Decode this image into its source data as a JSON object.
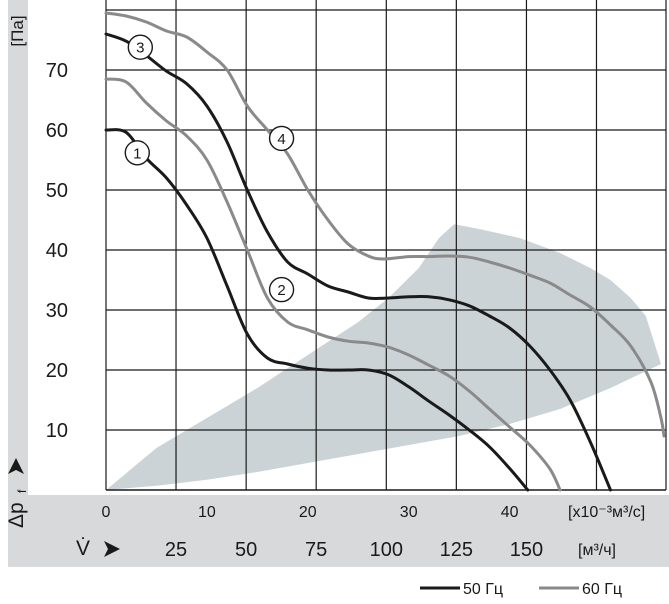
{
  "chart_data": {
    "type": "line",
    "y_axis": {
      "unit_label": "[Па]",
      "symbol_main": "Δp",
      "symbol_sub": "f",
      "ticks": [
        "10",
        "20",
        "30",
        "40",
        "50",
        "60",
        "70"
      ],
      "range": [
        0,
        80
      ]
    },
    "x_axis": {
      "ticks": [
        "0",
        "10",
        "20",
        "30",
        "40"
      ],
      "unit_label": "[x10⁻³м³/с]",
      "range": [
        0,
        55.5
      ]
    },
    "x_axis_secondary": {
      "symbol": "V̇",
      "ticks": [
        {
          "label": "25",
          "m3s": 6.94
        },
        {
          "label": "50",
          "m3s": 13.89
        },
        {
          "label": "75",
          "m3s": 20.83
        },
        {
          "label": "100",
          "m3s": 27.78
        },
        {
          "label": "125",
          "m3s": 34.72
        },
        {
          "label": "150",
          "m3s": 41.67
        }
      ],
      "unit_label": "[м³/ч]"
    },
    "grid": true,
    "legend": {
      "position": "bottom-right",
      "items": [
        {
          "label": "50 Гц",
          "color": "#1a1a1a"
        },
        {
          "label": "60 Гц",
          "color": "#8a8a8a"
        }
      ]
    },
    "series": [
      {
        "marker": "1",
        "frequency": "50 Гц",
        "color": "#1a1a1a",
        "marker_at": [
          3.1,
          56.2
        ],
        "points": [
          [
            0,
            60
          ],
          [
            2,
            59.6
          ],
          [
            4,
            55.3
          ],
          [
            6,
            52
          ],
          [
            8,
            47.5
          ],
          [
            10,
            42
          ],
          [
            12,
            34
          ],
          [
            14,
            26
          ],
          [
            16,
            22
          ],
          [
            18,
            21
          ],
          [
            20,
            20.3
          ],
          [
            22,
            20
          ],
          [
            24,
            20
          ],
          [
            26,
            20
          ],
          [
            28,
            19.2
          ],
          [
            30,
            17.2
          ],
          [
            32,
            14.8
          ],
          [
            34,
            12.5
          ],
          [
            36,
            10
          ],
          [
            38,
            7.2
          ],
          [
            40,
            3.6
          ],
          [
            41.8,
            0
          ]
        ]
      },
      {
        "marker": "2",
        "frequency": "60 Гц",
        "color": "#8a8a8a",
        "marker_at": [
          17.4,
          33.4
        ],
        "points": [
          [
            0,
            68.5
          ],
          [
            2,
            68
          ],
          [
            4,
            64.5
          ],
          [
            6,
            61.5
          ],
          [
            8,
            59
          ],
          [
            10,
            55
          ],
          [
            12,
            48
          ],
          [
            14,
            40
          ],
          [
            16,
            32
          ],
          [
            18,
            28
          ],
          [
            20,
            26.7
          ],
          [
            22,
            25.5
          ],
          [
            24,
            24.8
          ],
          [
            26,
            24.5
          ],
          [
            28,
            23.8
          ],
          [
            30,
            22.5
          ],
          [
            32,
            20.8
          ],
          [
            34,
            19
          ],
          [
            36,
            16.5
          ],
          [
            38,
            13.5
          ],
          [
            40,
            10.5
          ],
          [
            42,
            7.5
          ],
          [
            44,
            3.5
          ],
          [
            45,
            0
          ]
        ]
      },
      {
        "marker": "3",
        "frequency": "50 Гц",
        "color": "#1a1a1a",
        "marker_at": [
          3.4,
          73.8
        ],
        "points": [
          [
            0,
            76
          ],
          [
            2,
            74.8
          ],
          [
            4,
            72.4
          ],
          [
            6,
            69.8
          ],
          [
            8,
            67.7
          ],
          [
            10,
            64
          ],
          [
            12,
            58
          ],
          [
            14,
            50
          ],
          [
            16,
            43
          ],
          [
            18,
            38
          ],
          [
            20,
            36
          ],
          [
            22,
            34
          ],
          [
            24,
            33
          ],
          [
            26,
            32
          ],
          [
            28,
            32
          ],
          [
            30,
            32.2
          ],
          [
            32,
            32.2
          ],
          [
            34,
            31.7
          ],
          [
            36,
            30.7
          ],
          [
            38,
            29
          ],
          [
            40,
            27
          ],
          [
            42,
            24
          ],
          [
            44,
            20
          ],
          [
            46,
            15
          ],
          [
            48,
            8
          ],
          [
            50,
            0
          ]
        ]
      },
      {
        "marker": "4",
        "frequency": "60 Гц",
        "color": "#8a8a8a",
        "marker_at": [
          17.4,
          58.6
        ],
        "points": [
          [
            0,
            79.5
          ],
          [
            2,
            79
          ],
          [
            4,
            78
          ],
          [
            6,
            76.5
          ],
          [
            8,
            75.5
          ],
          [
            10,
            73
          ],
          [
            12,
            70
          ],
          [
            14,
            64
          ],
          [
            16,
            60
          ],
          [
            18,
            56
          ],
          [
            20,
            50
          ],
          [
            22,
            45
          ],
          [
            24,
            41
          ],
          [
            26,
            39
          ],
          [
            27.5,
            38.5
          ],
          [
            30,
            38.9
          ],
          [
            32,
            38.9
          ],
          [
            34,
            39
          ],
          [
            36,
            38.8
          ],
          [
            38,
            38
          ],
          [
            40,
            37
          ],
          [
            42,
            35.8
          ],
          [
            44,
            34.5
          ],
          [
            46,
            32.5
          ],
          [
            48,
            30.5
          ],
          [
            50,
            27.5
          ],
          [
            52,
            24
          ],
          [
            54,
            18
          ],
          [
            55,
            12
          ],
          [
            55.3,
            9
          ]
        ]
      }
    ],
    "operating_region": {
      "color": "#cbd3d7",
      "points": [
        [
          0,
          0
        ],
        [
          5,
          7
        ],
        [
          10,
          12
        ],
        [
          15,
          17
        ],
        [
          20,
          22.5
        ],
        [
          25,
          28
        ],
        [
          28,
          32
        ],
        [
          31,
          37
        ],
        [
          33,
          42
        ],
        [
          34.5,
          44.3
        ],
        [
          37,
          43.5
        ],
        [
          41,
          42
        ],
        [
          45,
          39.5
        ],
        [
          48,
          37
        ],
        [
          50,
          35
        ],
        [
          52,
          32
        ],
        [
          53.5,
          29
        ],
        [
          55,
          21
        ],
        [
          50,
          17
        ],
        [
          45,
          13.5
        ],
        [
          40,
          11
        ],
        [
          35,
          9
        ],
        [
          30,
          7.5
        ],
        [
          25,
          6
        ],
        [
          20,
          4.5
        ],
        [
          15,
          3
        ],
        [
          10,
          1.7
        ],
        [
          5,
          0.7
        ],
        [
          0,
          0
        ]
      ]
    }
  }
}
